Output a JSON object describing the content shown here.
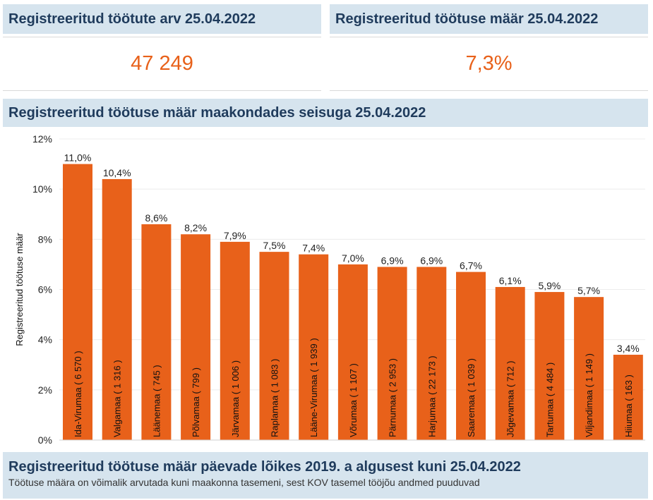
{
  "kpis": [
    {
      "title": "Registreeritud töötute arv 25.04.2022",
      "value": "47 249"
    },
    {
      "title": "Registreeritud töötuse määr 25.04.2022",
      "value": "7,3%"
    }
  ],
  "chart_title": "Registreeritud töötuse määr maakondades seisuga 25.04.2022",
  "chart_data": {
    "type": "bar",
    "categories": [
      "Ida-Virumaa ( 6 570 )",
      "Valgamaa ( 1 316 )",
      "Läänemaa ( 745 )",
      "Põlvamaa ( 799 )",
      "Järvamaa ( 1 006 )",
      "Raplamaa ( 1 083 )",
      "Lääne-Virumaa ( 1 939 )",
      "Võrumaa ( 1 107 )",
      "Pärnumaa ( 2 953 )",
      "Harjumaa ( 22 173 )",
      "Saaremaa ( 1 039 )",
      "Jõgevamaa ( 712 )",
      "Tartumaa ( 4 484 )",
      "Viljandimaa ( 1 149 )",
      "Hiiumaa ( 163 )"
    ],
    "values": [
      11.0,
      10.4,
      8.6,
      8.2,
      7.9,
      7.5,
      7.4,
      7.0,
      6.9,
      6.9,
      6.7,
      6.1,
      5.9,
      5.7,
      3.4
    ],
    "data_labels": [
      "11,0%",
      "10,4%",
      "8,6%",
      "8,2%",
      "7,9%",
      "7,5%",
      "7,4%",
      "7,0%",
      "6,9%",
      "6,9%",
      "6,7%",
      "6,1%",
      "5,9%",
      "5,7%",
      "3,4%"
    ],
    "ylabel": "Registreeritud töötuse määr",
    "ylim": [
      0,
      12
    ],
    "yticks": [
      0,
      2,
      4,
      6,
      8,
      10,
      12
    ],
    "ytick_labels": [
      "0%",
      "2%",
      "4%",
      "6%",
      "8%",
      "10%",
      "12%"
    ],
    "grid": true,
    "bar_color": "#e8611a"
  },
  "footer": {
    "title": "Registreeritud töötuse määr päevade lõikes 2019. a algusest kuni 25.04.2022",
    "subtitle": "Töötuse määra on võimalik arvutada kuni maakonna tasemeni, sest KOV tasemel tööjõu andmed puuduvad"
  }
}
